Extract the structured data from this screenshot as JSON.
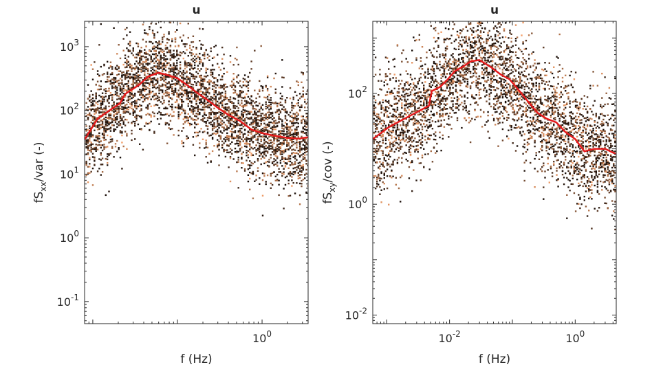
{
  "chart_data": [
    {
      "type": "scatter",
      "title": "u",
      "xlabel": "f (Hz)",
      "ylabel_main": "fS",
      "ylabel_sub": "xx",
      "ylabel_rest": "/var (-)",
      "xscale": "log",
      "yscale": "log",
      "xlim": [
        0.008,
        3.5
      ],
      "ylim": [
        0.045,
        2500
      ],
      "xticks": [
        {
          "value": 1,
          "mantissa": "10",
          "exp": "0"
        }
      ],
      "yticks": [
        {
          "value": 0.1,
          "mantissa": "10",
          "exp": "-1"
        },
        {
          "value": 1,
          "mantissa": "10",
          "exp": "0"
        },
        {
          "value": 10,
          "mantissa": "10",
          "exp": "1"
        },
        {
          "value": 100,
          "mantissa": "10",
          "exp": "2"
        },
        {
          "value": 1000,
          "mantissa": "10",
          "exp": "3"
        }
      ],
      "series": [
        {
          "type": "line",
          "color": "#e41a1c",
          "x": [
            0.008,
            0.0115,
            0.021,
            0.024,
            0.035,
            0.045,
            0.06,
            0.075,
            0.1,
            0.13,
            0.17,
            0.22,
            0.3,
            0.4,
            0.55,
            0.75,
            1.0,
            1.4,
            2.0,
            2.7,
            3.5
          ],
          "y": [
            35,
            75,
            130,
            180,
            250,
            340,
            390,
            360,
            320,
            250,
            190,
            150,
            110,
            85,
            68,
            50,
            44,
            40,
            37,
            36,
            38
          ]
        }
      ],
      "scatter_color_range": [
        "#1a0f0a",
        "#f4a06a"
      ]
    },
    {
      "type": "scatter",
      "title": "u",
      "xlabel": "f (Hz)",
      "ylabel_main": "fS",
      "ylabel_sub": "xy",
      "ylabel_rest": "/cov (-)",
      "xscale": "log",
      "yscale": "log",
      "xlim": [
        0.0006,
        4.5
      ],
      "ylim": [
        0.007,
        2000
      ],
      "xticks": [
        {
          "value": 0.01,
          "mantissa": "10",
          "exp": "-2"
        },
        {
          "value": 1,
          "mantissa": "10",
          "exp": "0"
        }
      ],
      "yticks": [
        {
          "value": 0.01,
          "mantissa": "10",
          "exp": "-2"
        },
        {
          "value": 1,
          "mantissa": "10",
          "exp": "0"
        },
        {
          "value": 100,
          "mantissa": "10",
          "exp": "2"
        }
      ],
      "series": [
        {
          "type": "line",
          "color": "#e41a1c",
          "x": [
            0.0006,
            0.0011,
            0.0047,
            0.0052,
            0.007,
            0.009,
            0.012,
            0.016,
            0.022,
            0.03,
            0.045,
            0.065,
            0.09,
            0.13,
            0.18,
            0.25,
            0.35,
            0.5,
            0.7,
            1.0,
            1.4,
            2.0,
            3.0,
            4.5
          ],
          "y": [
            15,
            25,
            60,
            110,
            130,
            170,
            250,
            300,
            380,
            400,
            300,
            220,
            180,
            110,
            70,
            45,
            35,
            30,
            20,
            15,
            9,
            10,
            10,
            8
          ]
        }
      ],
      "scatter_color_range": [
        "#1a0f0a",
        "#f4a06a"
      ]
    }
  ]
}
